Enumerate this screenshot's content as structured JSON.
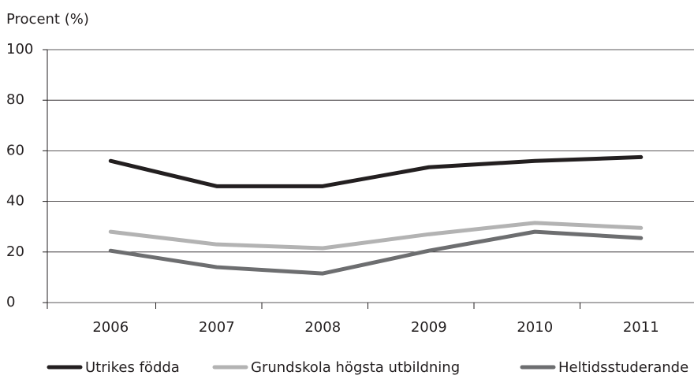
{
  "chart_data": {
    "type": "line",
    "y_label": "Procent (%)",
    "categories": [
      "2006",
      "2007",
      "2008",
      "2009",
      "2010",
      "2011"
    ],
    "series": [
      {
        "name": "Utrikes födda",
        "color": "#231f20",
        "values": [
          56,
          46,
          46,
          53.5,
          56,
          57.5
        ]
      },
      {
        "name": "Grundskola högsta utbildning",
        "color": "#b3b3b3",
        "values": [
          28,
          23,
          21.5,
          27,
          31.5,
          29.5
        ]
      },
      {
        "name": "Heltidsstuderande",
        "color": "#6d6e70",
        "values": [
          20.5,
          14,
          11.5,
          20.5,
          28,
          25.5
        ]
      }
    ],
    "ylim": [
      0,
      100
    ],
    "yticks": [
      0,
      20,
      40,
      60,
      80,
      100
    ],
    "grid": true,
    "legend": "bottom"
  }
}
